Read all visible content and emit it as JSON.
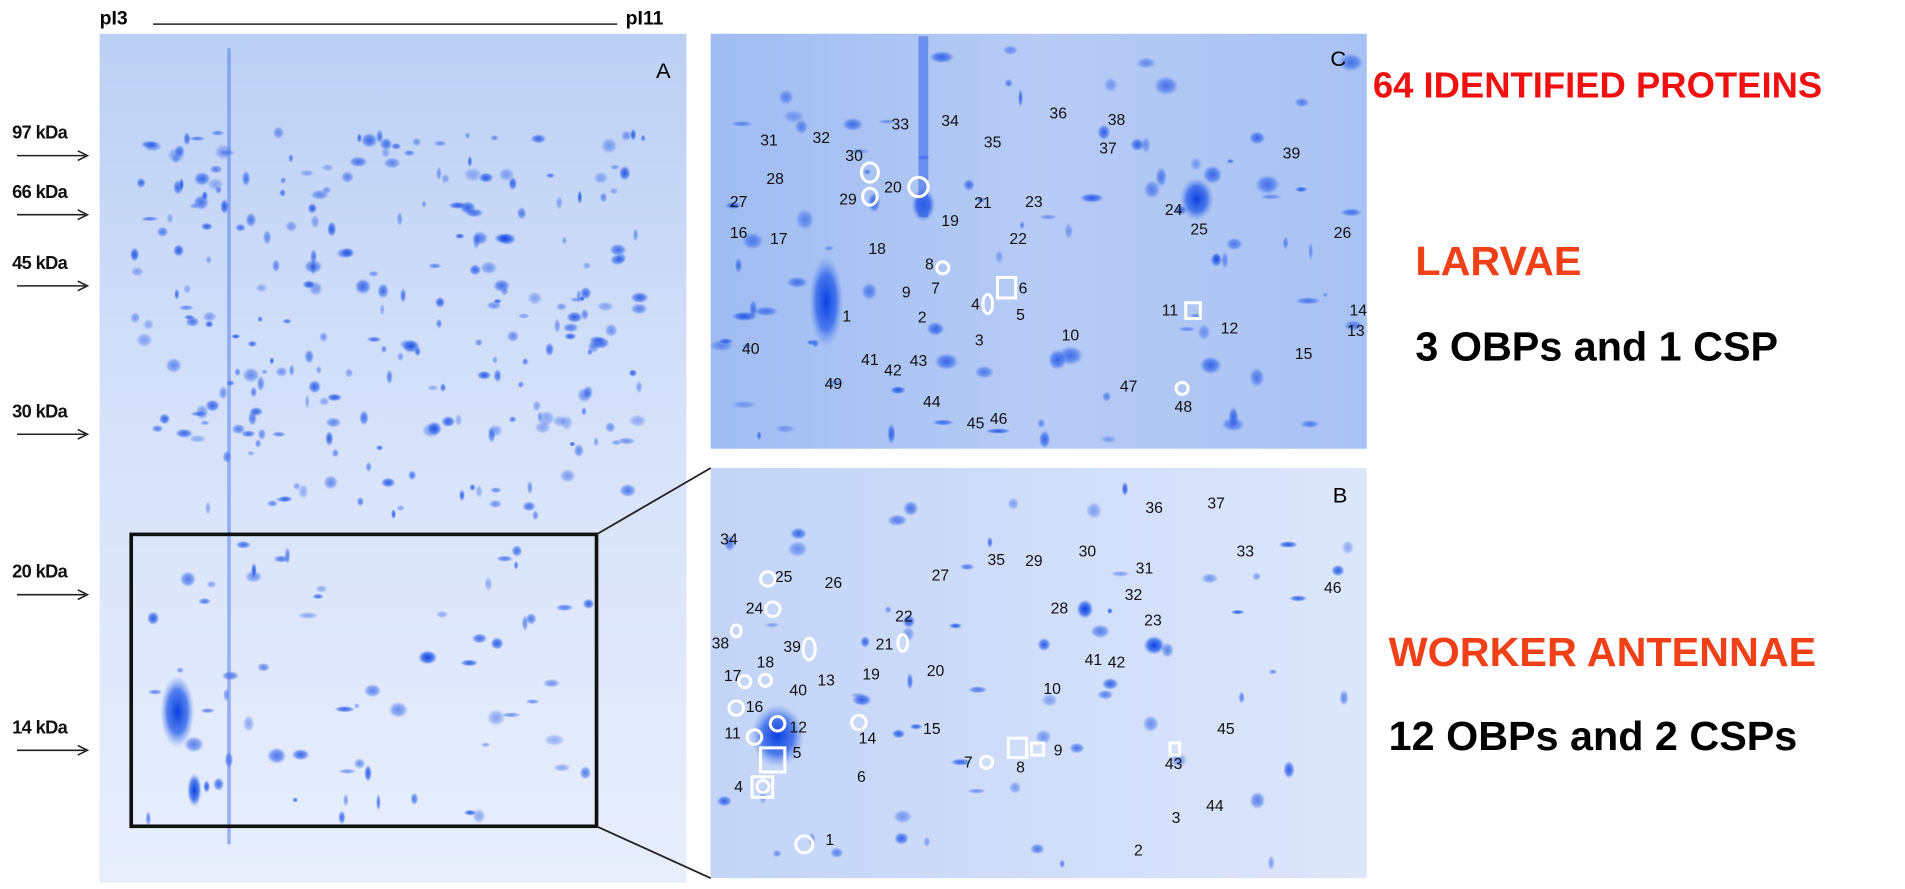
{
  "header": {
    "pi_left": "pI3",
    "pi_right": "pI11"
  },
  "panel_a": {
    "letter": "A",
    "markers": [
      "97 kDa",
      "66 kDa",
      "45 kDa",
      "30 kDa",
      "20 kDa",
      "14 kDa"
    ]
  },
  "panel_c": {
    "letter": "C",
    "spots": [
      "31",
      "32",
      "33",
      "34",
      "35",
      "36",
      "38",
      "37",
      "39",
      "30",
      "28",
      "29",
      "20",
      "21",
      "23",
      "27",
      "19",
      "24",
      "25",
      "26",
      "16",
      "17",
      "18",
      "22",
      "8",
      "7",
      "6",
      "9",
      "4",
      "5",
      "2",
      "1",
      "11",
      "12",
      "14",
      "13",
      "10",
      "3",
      "15",
      "40",
      "41",
      "42",
      "43",
      "49",
      "47",
      "48",
      "44",
      "45",
      "46"
    ]
  },
  "panel_b": {
    "letter": "B",
    "spots": [
      "36",
      "37",
      "34",
      "35",
      "29",
      "30",
      "31",
      "33",
      "46",
      "25",
      "26",
      "27",
      "28",
      "32",
      "24",
      "22",
      "23",
      "38",
      "39",
      "21",
      "41",
      "42",
      "19",
      "20",
      "17",
      "18",
      "40",
      "13",
      "10",
      "16",
      "11",
      "12",
      "14",
      "15",
      "45",
      "5",
      "9",
      "7",
      "8",
      "43",
      "6",
      "4",
      "3",
      "44",
      "1",
      "2"
    ]
  },
  "summary": {
    "title": "64 IDENTIFIED PROTEINS",
    "larvae": {
      "heading": "LARVAE",
      "detail": "3 OBPs and 1 CSP"
    },
    "antennae": {
      "heading": "WORKER ANTENNAE",
      "detail": "12 OBPs  and 2 CSPs"
    }
  }
}
